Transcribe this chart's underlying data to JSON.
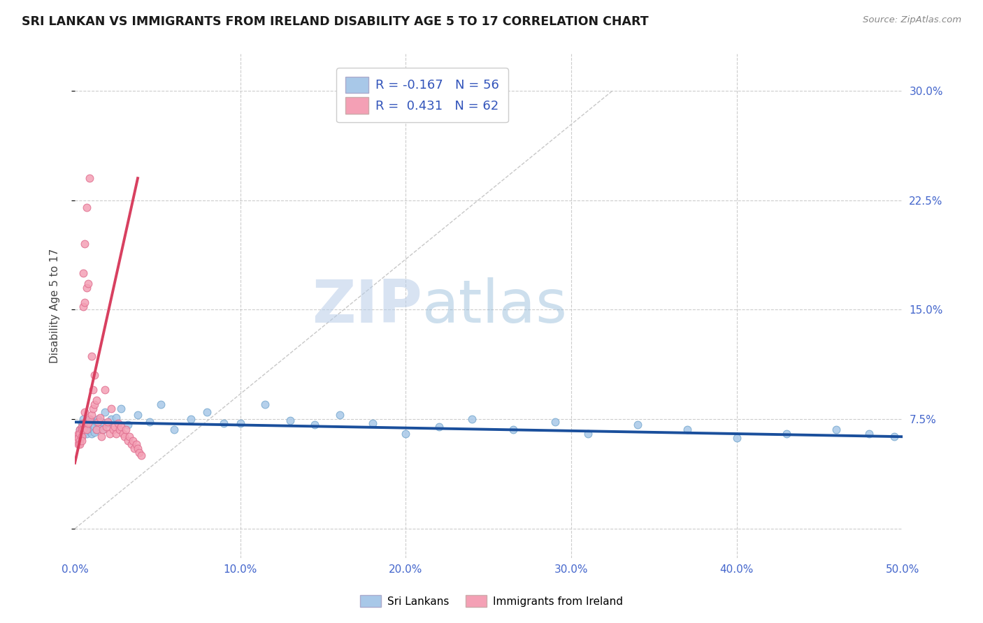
{
  "title": "SRI LANKAN VS IMMIGRANTS FROM IRELAND DISABILITY AGE 5 TO 17 CORRELATION CHART",
  "source": "Source: ZipAtlas.com",
  "ylabel": "Disability Age 5 to 17",
  "xlim": [
    0.0,
    0.5
  ],
  "ylim": [
    -0.02,
    0.325
  ],
  "xticks": [
    0.0,
    0.1,
    0.2,
    0.3,
    0.4,
    0.5
  ],
  "yticks": [
    0.0,
    0.075,
    0.15,
    0.225,
    0.3
  ],
  "ytick_labels": [
    "",
    "7.5%",
    "15.0%",
    "22.5%",
    "30.0%"
  ],
  "xtick_labels": [
    "0.0%",
    "10.0%",
    "20.0%",
    "30.0%",
    "40.0%",
    "50.0%"
  ],
  "blue_R": -0.167,
  "blue_N": 56,
  "pink_R": 0.431,
  "pink_N": 62,
  "blue_color": "#a8c8e8",
  "pink_color": "#f4a0b5",
  "blue_edge_color": "#7aaad0",
  "pink_edge_color": "#e07090",
  "blue_line_color": "#1a4f9c",
  "pink_line_color": "#d84060",
  "grid_color": "#cccccc",
  "background_color": "#ffffff",
  "watermark_zip": "ZIP",
  "watermark_atlas": "atlas",
  "legend_label_blue": "Sri Lankans",
  "legend_label_pink": "Immigrants from Ireland",
  "blue_scatter_x": [
    0.003,
    0.004,
    0.005,
    0.005,
    0.006,
    0.006,
    0.007,
    0.007,
    0.008,
    0.008,
    0.009,
    0.009,
    0.01,
    0.01,
    0.011,
    0.011,
    0.012,
    0.012,
    0.013,
    0.013,
    0.014,
    0.015,
    0.016,
    0.017,
    0.018,
    0.02,
    0.022,
    0.025,
    0.028,
    0.032,
    0.038,
    0.045,
    0.052,
    0.06,
    0.07,
    0.08,
    0.09,
    0.1,
    0.115,
    0.13,
    0.145,
    0.16,
    0.18,
    0.2,
    0.22,
    0.24,
    0.265,
    0.29,
    0.31,
    0.34,
    0.37,
    0.4,
    0.43,
    0.46,
    0.48,
    0.495
  ],
  "blue_scatter_y": [
    0.068,
    0.072,
    0.065,
    0.075,
    0.07,
    0.068,
    0.072,
    0.065,
    0.069,
    0.073,
    0.067,
    0.071,
    0.074,
    0.065,
    0.068,
    0.072,
    0.07,
    0.066,
    0.073,
    0.068,
    0.075,
    0.07,
    0.073,
    0.068,
    0.08,
    0.072,
    0.075,
    0.076,
    0.082,
    0.071,
    0.078,
    0.073,
    0.085,
    0.068,
    0.075,
    0.08,
    0.072,
    0.072,
    0.085,
    0.074,
    0.071,
    0.078,
    0.072,
    0.065,
    0.07,
    0.075,
    0.068,
    0.073,
    0.065,
    0.071,
    0.068,
    0.062,
    0.065,
    0.068,
    0.065,
    0.063
  ],
  "pink_scatter_x": [
    0.001,
    0.001,
    0.002,
    0.002,
    0.002,
    0.003,
    0.003,
    0.003,
    0.003,
    0.004,
    0.004,
    0.004,
    0.004,
    0.005,
    0.005,
    0.005,
    0.005,
    0.006,
    0.006,
    0.006,
    0.007,
    0.007,
    0.007,
    0.008,
    0.008,
    0.009,
    0.009,
    0.01,
    0.01,
    0.011,
    0.011,
    0.012,
    0.012,
    0.013,
    0.013,
    0.014,
    0.015,
    0.016,
    0.017,
    0.018,
    0.019,
    0.02,
    0.021,
    0.022,
    0.023,
    0.024,
    0.025,
    0.026,
    0.027,
    0.028,
    0.029,
    0.03,
    0.031,
    0.032,
    0.033,
    0.034,
    0.035,
    0.036,
    0.037,
    0.038,
    0.039,
    0.04
  ],
  "pink_scatter_y": [
    0.063,
    0.06,
    0.065,
    0.062,
    0.058,
    0.068,
    0.065,
    0.06,
    0.058,
    0.07,
    0.068,
    0.063,
    0.06,
    0.072,
    0.152,
    0.068,
    0.175,
    0.08,
    0.195,
    0.155,
    0.165,
    0.068,
    0.22,
    0.072,
    0.168,
    0.075,
    0.24,
    0.078,
    0.118,
    0.082,
    0.095,
    0.085,
    0.105,
    0.088,
    0.068,
    0.073,
    0.076,
    0.063,
    0.068,
    0.095,
    0.07,
    0.073,
    0.065,
    0.082,
    0.068,
    0.07,
    0.065,
    0.072,
    0.068,
    0.07,
    0.065,
    0.063,
    0.068,
    0.06,
    0.063,
    0.058,
    0.06,
    0.055,
    0.058,
    0.055,
    0.052,
    0.05
  ],
  "diag_line_x": [
    0.0,
    0.325
  ],
  "diag_line_y": [
    0.0,
    0.3
  ],
  "blue_line_x0": 0.0,
  "blue_line_x1": 0.5,
  "blue_line_y0": 0.073,
  "blue_line_y1": 0.063,
  "pink_line_x0": 0.0,
  "pink_line_x1": 0.038,
  "pink_line_y0": 0.045,
  "pink_line_y1": 0.24
}
